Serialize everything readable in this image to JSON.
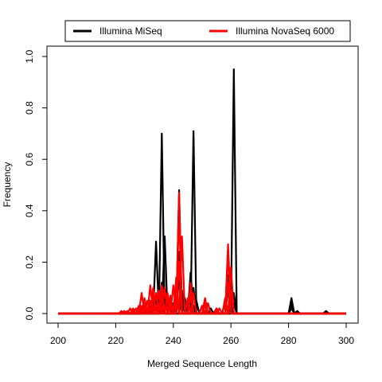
{
  "chart_data": {
    "type": "line",
    "title": "",
    "xlabel": "Merged Sequence Length",
    "ylabel": "Frequency",
    "xlim": [
      200,
      300
    ],
    "ylim": [
      0,
      1
    ],
    "x_ticks": [
      200,
      220,
      240,
      260,
      280,
      300
    ],
    "y_ticks": [
      0.0,
      0.2,
      0.4,
      0.6,
      0.8,
      1.0
    ],
    "y_tick_labels": [
      "0.0",
      "0.2",
      "0.4",
      "0.6",
      "0.8",
      "1.0"
    ],
    "grid": false,
    "legend_position": "top",
    "legend": [
      {
        "label": "Illumina MiSeq",
        "color": "#000000"
      },
      {
        "label": "Illumina NovaSeq 6000",
        "color": "#ff0000"
      }
    ],
    "series": [
      {
        "group": 0,
        "peaks": [
          [
            234,
            0.28
          ],
          [
            236,
            0.7
          ],
          [
            247,
            0.71
          ],
          [
            261,
            0.95
          ],
          [
            281,
            0.06
          ]
        ]
      },
      {
        "group": 0,
        "peaks": [
          [
            237,
            0.3
          ],
          [
            242,
            0.48
          ],
          [
            259,
            0.15
          ],
          [
            281,
            0.04
          ]
        ]
      },
      {
        "group": 0,
        "peaks": [
          [
            230,
            0.04
          ],
          [
            233,
            0.06
          ],
          [
            236,
            0.12
          ],
          [
            242,
            0.24
          ],
          [
            246,
            0.16
          ],
          [
            251,
            0.05
          ],
          [
            259,
            0.1
          ],
          [
            261,
            0.08
          ],
          [
            283,
            0.01
          ]
        ]
      },
      {
        "group": 0,
        "peaks": [
          [
            230,
            0.03
          ],
          [
            234,
            0.05
          ],
          [
            237,
            0.09
          ],
          [
            242,
            0.15
          ],
          [
            247,
            0.1
          ],
          [
            252,
            0.04
          ],
          [
            260,
            0.06
          ],
          [
            281,
            0.03
          ]
        ]
      },
      {
        "group": 0,
        "peaks": [
          [
            232,
            0.03
          ],
          [
            236,
            0.06
          ],
          [
            241,
            0.12
          ],
          [
            246,
            0.08
          ],
          [
            250,
            0.03
          ],
          [
            258,
            0.05
          ],
          [
            293,
            0.01
          ]
        ]
      },
      {
        "group": 0,
        "peaks": [
          [
            229,
            0.02
          ],
          [
            235,
            0.04
          ],
          [
            239,
            0.06
          ],
          [
            243,
            0.09
          ],
          [
            248,
            0.05
          ],
          [
            253,
            0.02
          ],
          [
            261,
            0.04
          ],
          [
            281,
            0.02
          ]
        ]
      },
      {
        "group": 0,
        "peaks": [
          [
            231,
            0.02
          ],
          [
            236,
            0.03
          ],
          [
            240,
            0.04
          ],
          [
            244,
            0.06
          ],
          [
            247,
            0.03
          ],
          [
            255,
            0.02
          ],
          [
            260,
            0.03
          ]
        ]
      },
      {
        "group": 1,
        "peaks": [
          [
            223,
            0.01
          ],
          [
            226,
            0.02
          ],
          [
            230,
            0.06
          ],
          [
            233,
            0.1
          ],
          [
            236,
            0.11
          ],
          [
            239,
            0.07
          ],
          [
            242,
            0.47
          ],
          [
            246,
            0.12
          ],
          [
            251,
            0.05
          ],
          [
            255,
            0.02
          ],
          [
            259,
            0.27
          ]
        ]
      },
      {
        "group": 1,
        "peaks": [
          [
            222,
            0.01
          ],
          [
            227,
            0.02
          ],
          [
            229,
            0.08
          ],
          [
            232,
            0.11
          ],
          [
            235,
            0.09
          ],
          [
            238,
            0.06
          ],
          [
            240,
            0.11
          ],
          [
            242,
            0.4
          ],
          [
            246,
            0.1
          ],
          [
            251,
            0.06
          ],
          [
            255,
            0.01
          ],
          [
            259,
            0.24
          ]
        ]
      },
      {
        "group": 1,
        "peaks": [
          [
            224,
            0.01
          ],
          [
            228,
            0.03
          ],
          [
            231,
            0.05
          ],
          [
            234,
            0.08
          ],
          [
            237,
            0.1
          ],
          [
            241,
            0.08
          ],
          [
            243,
            0.3
          ],
          [
            247,
            0.08
          ],
          [
            252,
            0.04
          ],
          [
            258,
            0.06
          ],
          [
            260,
            0.18
          ]
        ]
      },
      {
        "group": 1,
        "peaks": [
          [
            225,
            0.02
          ],
          [
            230,
            0.04
          ],
          [
            233,
            0.07
          ],
          [
            236,
            0.06
          ],
          [
            239,
            0.05
          ],
          [
            242,
            0.2
          ],
          [
            245,
            0.06
          ],
          [
            250,
            0.03
          ],
          [
            256,
            0.02
          ],
          [
            259,
            0.12
          ]
        ]
      },
      {
        "group": 1,
        "peaks": [
          [
            226,
            0.01
          ],
          [
            229,
            0.03
          ],
          [
            232,
            0.05
          ],
          [
            235,
            0.04
          ],
          [
            238,
            0.08
          ],
          [
            241,
            0.14
          ],
          [
            246,
            0.07
          ],
          [
            251,
            0.03
          ],
          [
            260,
            0.09
          ]
        ]
      }
    ]
  }
}
